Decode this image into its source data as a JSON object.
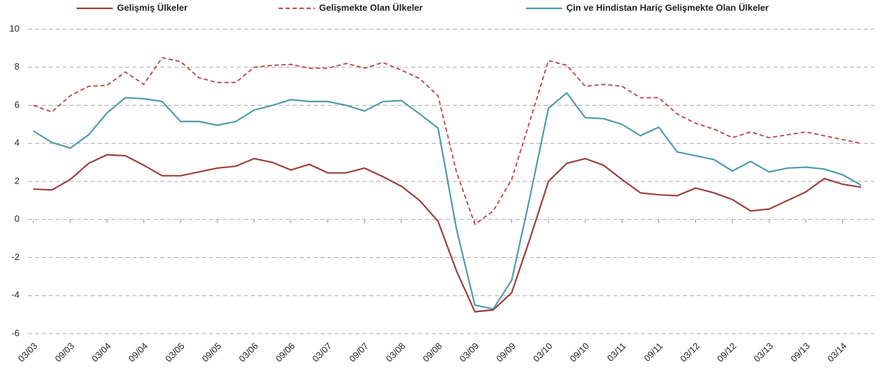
{
  "chart_data": {
    "type": "line",
    "categories": [
      "03/03",
      null,
      "09/03",
      null,
      "03/04",
      null,
      "09/04",
      null,
      "03/05",
      null,
      "09/05",
      null,
      "03/06",
      null,
      "09/06",
      null,
      "03/07",
      null,
      "09/07",
      null,
      "03/08",
      null,
      "09/08",
      null,
      "03/09",
      null,
      "09/09",
      null,
      "03/10",
      null,
      "09/10",
      null,
      "03/11",
      null,
      "09/11",
      null,
      "03/12",
      null,
      "09/12",
      null,
      "03/13",
      null,
      "09/13",
      null,
      "03/14",
      null
    ],
    "series": [
      {
        "name": "Gelişmiş Ülkeler",
        "color": "#9b403b",
        "style": "solid",
        "values": [
          1.6,
          1.55,
          2.1,
          2.95,
          3.4,
          3.35,
          2.85,
          2.3,
          2.3,
          2.5,
          2.7,
          2.8,
          3.2,
          3.0,
          2.6,
          2.9,
          2.45,
          2.45,
          2.7,
          2.25,
          1.75,
          1.0,
          -0.1,
          -2.7,
          -4.85,
          -4.75,
          -3.85,
          -1.0,
          2.0,
          2.95,
          3.2,
          2.85,
          2.1,
          1.4,
          1.3,
          1.25,
          1.65,
          1.4,
          1.05,
          0.45,
          0.55,
          1.0,
          1.45,
          2.15,
          1.85,
          1.7
        ]
      },
      {
        "name": "Gelişmekte Olan Ülkeler",
        "color": "#c0504d",
        "style": "dashed",
        "values": [
          6.0,
          5.65,
          6.5,
          7.0,
          7.05,
          7.75,
          7.1,
          8.5,
          8.3,
          7.45,
          7.2,
          7.2,
          8.0,
          8.1,
          8.15,
          7.95,
          7.95,
          8.2,
          7.95,
          8.25,
          7.85,
          7.4,
          6.5,
          2.5,
          -0.25,
          0.45,
          2.1,
          5.2,
          8.35,
          8.1,
          7.0,
          7.1,
          7.0,
          6.4,
          6.4,
          5.55,
          5.05,
          4.75,
          4.3,
          4.6,
          4.3,
          4.45,
          4.6,
          4.4,
          4.2,
          4.0
        ]
      },
      {
        "name": "Çin ve Hindistan Hariç  Gelişmekte Olan Ülkeler",
        "color": "#4f9aab",
        "style": "solid",
        "values": [
          4.65,
          4.05,
          3.75,
          4.45,
          5.6,
          6.4,
          6.35,
          6.2,
          5.15,
          5.15,
          4.95,
          5.15,
          5.75,
          6.0,
          6.3,
          6.2,
          6.2,
          6.0,
          5.7,
          6.2,
          6.25,
          5.55,
          4.8,
          -0.5,
          -4.5,
          -4.7,
          -3.2,
          1.2,
          5.85,
          6.65,
          5.35,
          5.3,
          5.0,
          4.4,
          4.85,
          3.55,
          3.35,
          3.15,
          2.55,
          3.05,
          2.5,
          2.7,
          2.75,
          2.65,
          2.35,
          1.8
        ]
      }
    ],
    "ylim": [
      -6,
      10
    ],
    "yticks": [
      -6,
      -4,
      -2,
      0,
      2,
      4,
      6,
      8,
      10
    ],
    "grid": true,
    "legend": "top"
  }
}
